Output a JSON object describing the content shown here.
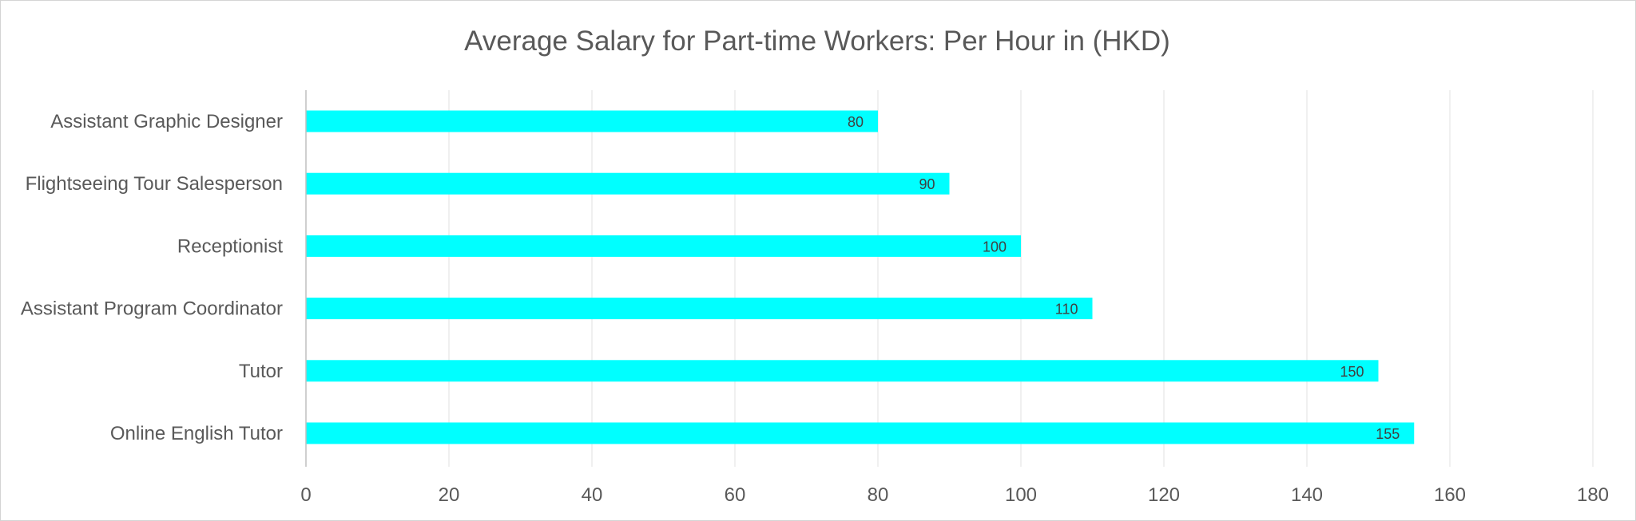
{
  "chart_data": {
    "type": "bar",
    "orientation": "horizontal",
    "title": "Average Salary for Part-time Workers: Per Hour in (HKD)",
    "categories": [
      "Assistant Graphic Designer",
      "Flightseeing Tour Salesperson",
      "Receptionist",
      "Assistant Program Coordinator",
      "Tutor",
      "Online English Tutor"
    ],
    "values": [
      80,
      90,
      100,
      110,
      150,
      155
    ],
    "xlim": [
      0,
      180
    ],
    "xticks": [
      0,
      20,
      40,
      60,
      80,
      100,
      120,
      140,
      160,
      180
    ],
    "xlabel": "",
    "ylabel": "",
    "grid": "vertical",
    "legend": "none",
    "data_labels": true,
    "colors": {
      "bar": "#00FFFF",
      "text": "#595959",
      "data_label": "#404040",
      "grid": "#ececec",
      "axis": "#bfbfbf"
    }
  }
}
